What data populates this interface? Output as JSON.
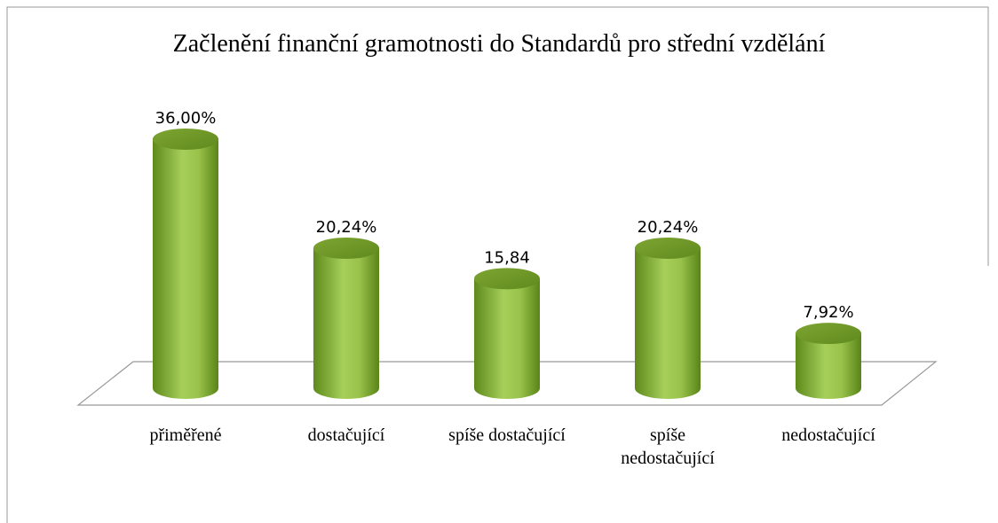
{
  "chart_data": {
    "type": "bar",
    "title": "Začlenění finanční gramotnosti do Standardů pro střední vzdělání",
    "categories": [
      "přiměřené",
      "dostačující",
      "spíše dostačující",
      "spíše nedostačující",
      "nedostačující"
    ],
    "values": [
      36,
      20.24,
      15.84,
      20.24,
      7.92
    ],
    "value_labels": [
      "36,00%",
      "20,24%",
      "15,84",
      "20,24%",
      "7,92%"
    ],
    "color": "#8fb83a"
  }
}
